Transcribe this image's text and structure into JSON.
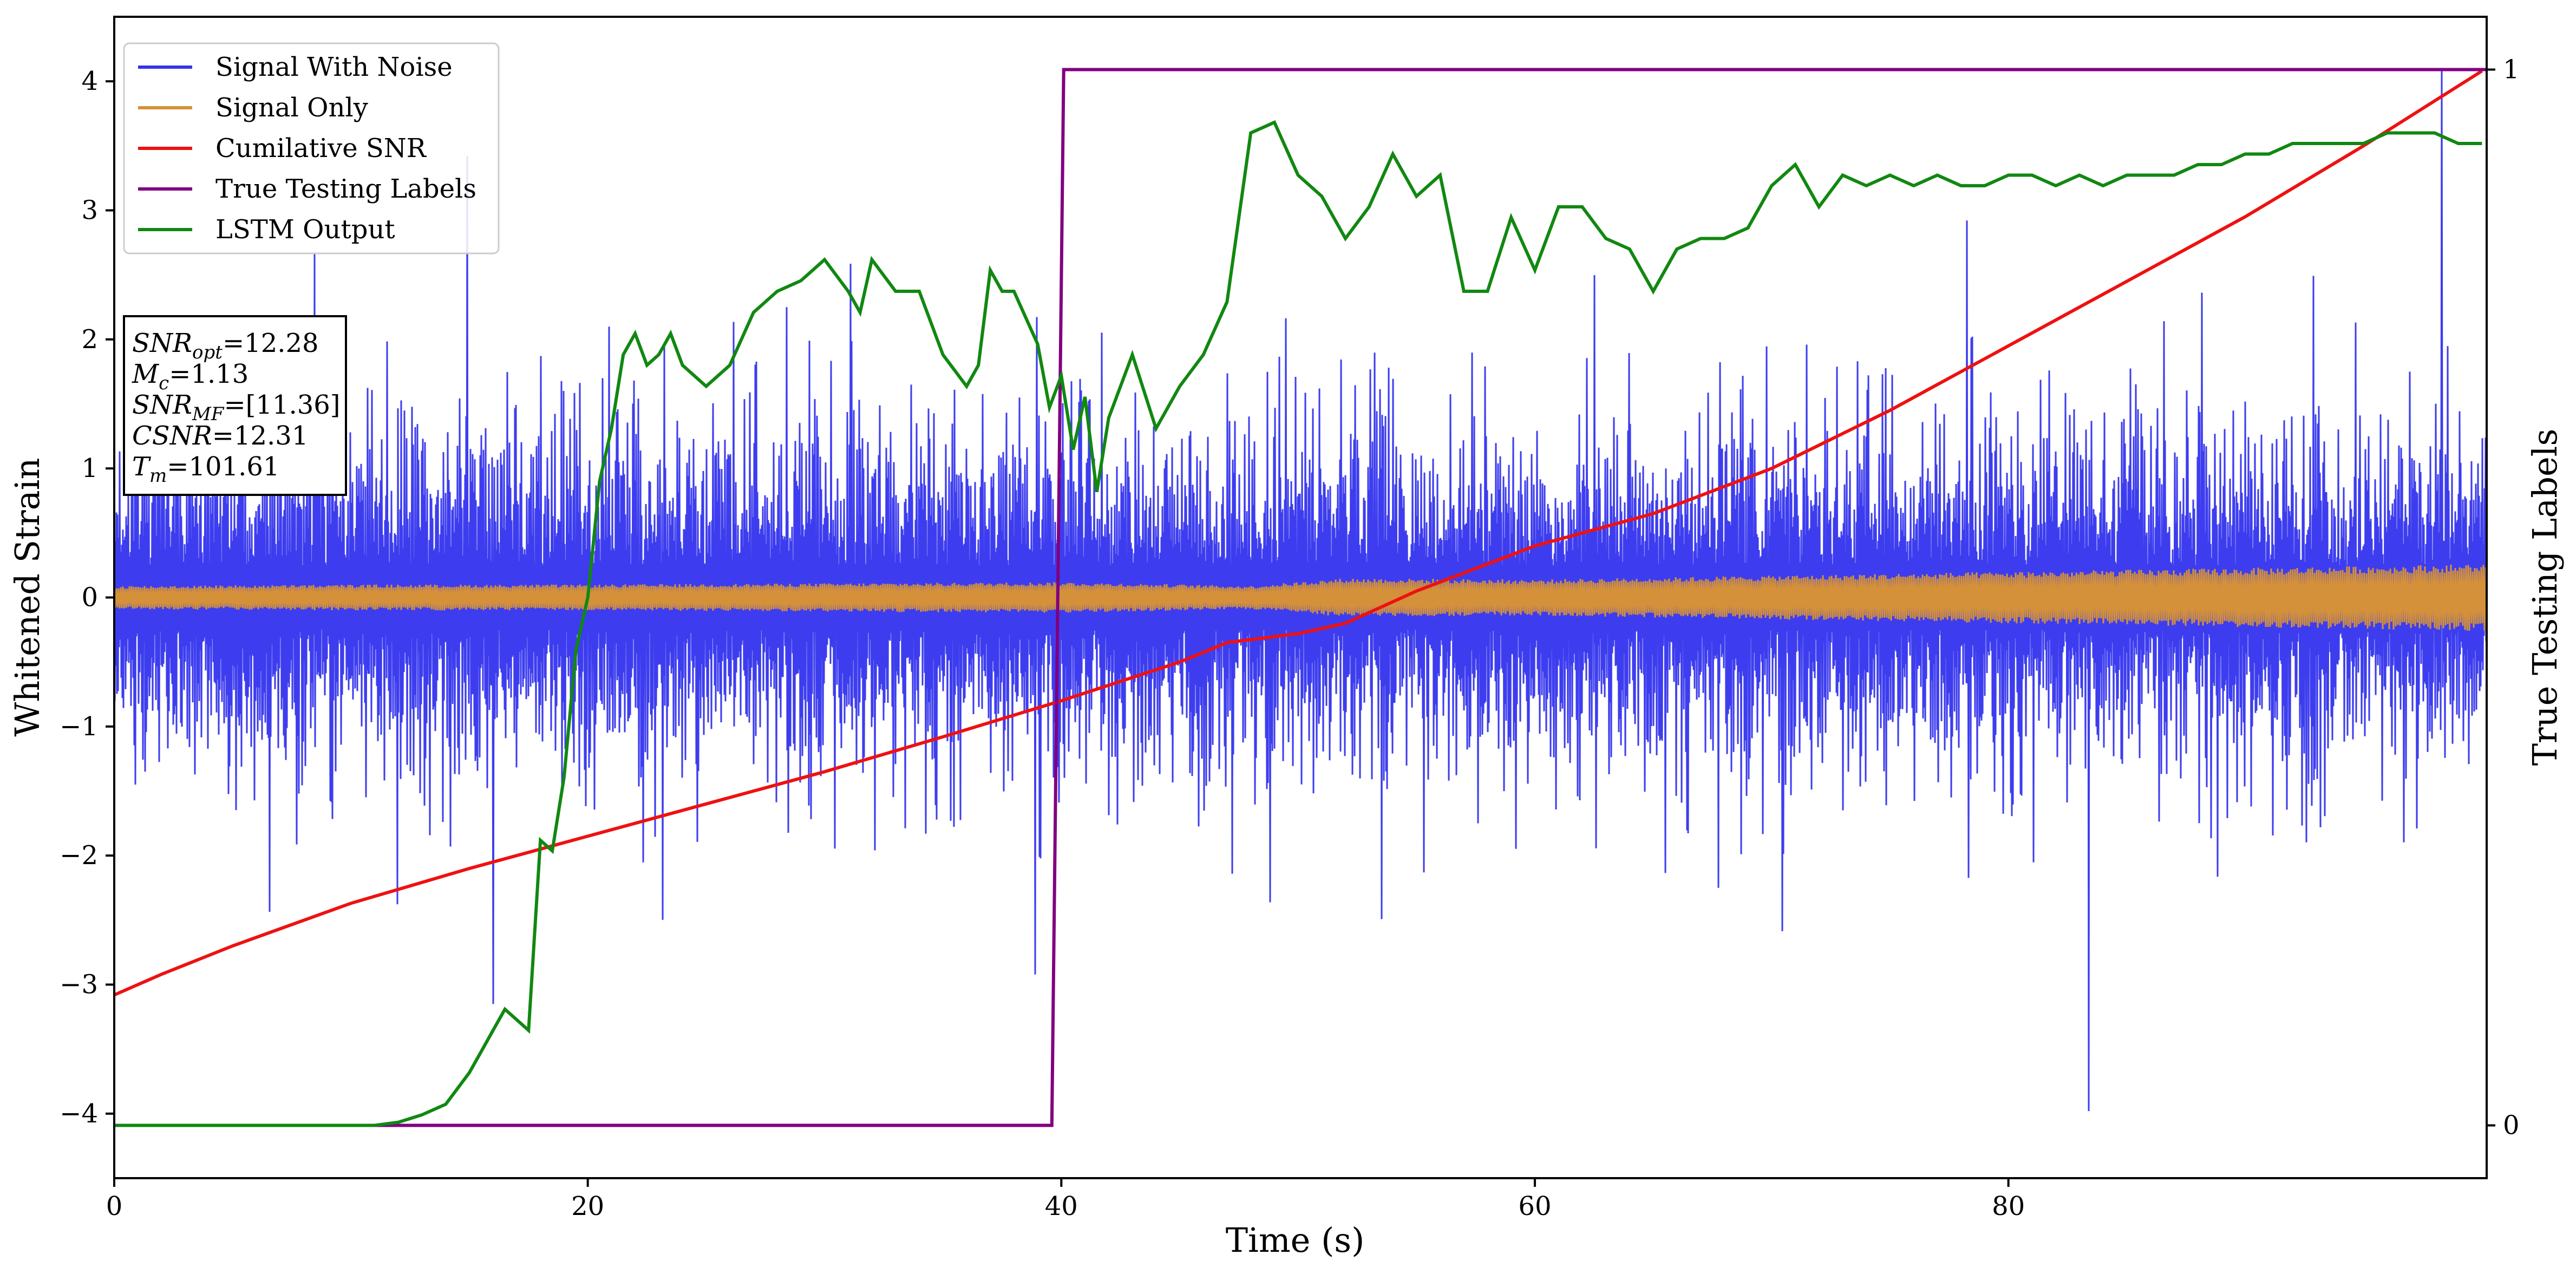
{
  "chart_data": {
    "type": "line",
    "xlabel": "Time (s)",
    "ylabel": "Whitened Strain",
    "y2label": "True Testing Labels",
    "xlim": [
      0,
      100.2
    ],
    "ylim": [
      -4.5,
      4.5
    ],
    "y2lim": [
      -0.05,
      1.05
    ],
    "x_ticks": [
      0,
      20,
      40,
      60,
      80
    ],
    "y_ticks": [
      -4,
      -3,
      -2,
      -1,
      0,
      1,
      2,
      3,
      4
    ],
    "y2_ticks": [
      0,
      1
    ],
    "grid": false,
    "legend_position": "top-left",
    "colors": {
      "signal_with_noise": "#3333ee",
      "signal_only": "#d4913a",
      "cumulative_snr": "#ee1111",
      "true_labels": "#800080",
      "lstm_output": "#118811"
    },
    "legend": [
      {
        "key": "signal_with_noise",
        "label": "Signal With Noise"
      },
      {
        "key": "signal_only",
        "label": "Signal Only"
      },
      {
        "key": "cumulative_snr",
        "label": "Cumilative SNR"
      },
      {
        "key": "true_labels",
        "label": "True Testing Labels"
      },
      {
        "key": "lstm_output",
        "label": "LSTM Output"
      }
    ],
    "info_box": [
      {
        "base": "SNR",
        "sub": "opt",
        "value": "=12.28"
      },
      {
        "base": "M",
        "sub": "c",
        "value": "=1.13"
      },
      {
        "base": "SNR",
        "sub": "MF",
        "value": "=[11.36]"
      },
      {
        "base": "CSNR",
        "sub": "",
        "value": "=12.31"
      },
      {
        "base": "T",
        "sub": "m",
        "value": "=101.61"
      }
    ],
    "signal_with_noise": {
      "note_axis": "left",
      "typical_envelope": 1.3,
      "max_abs": 4.1,
      "extreme_peaks": [
        {
          "x": 16.0,
          "y": -3.15
        },
        {
          "x": 14.9,
          "y": 3.42
        },
        {
          "x": 83.4,
          "y": -3.98
        },
        {
          "x": 98.3,
          "y": 4.1
        }
      ]
    },
    "signal_only": {
      "axis": "left",
      "x": [
        0,
        10,
        20,
        30,
        40,
        48,
        52,
        60,
        70,
        80,
        90,
        100
      ],
      "amplitude": [
        0.09,
        0.1,
        0.1,
        0.11,
        0.12,
        0.09,
        0.15,
        0.14,
        0.17,
        0.2,
        0.23,
        0.26
      ]
    },
    "cumulative_snr": {
      "axis": "left",
      "x": [
        0,
        2,
        5,
        10,
        15,
        20,
        25,
        30,
        35,
        40,
        45,
        47,
        50,
        52,
        55,
        60,
        65,
        70,
        75,
        80,
        85,
        90,
        95,
        100
      ],
      "y": [
        -3.08,
        -2.92,
        -2.7,
        -2.37,
        -2.1,
        -1.85,
        -1.6,
        -1.35,
        -1.08,
        -0.8,
        -0.5,
        -0.35,
        -0.28,
        -0.2,
        0.05,
        0.4,
        0.65,
        1.0,
        1.45,
        1.95,
        2.45,
        2.95,
        3.5,
        4.08
      ]
    },
    "true_testing_labels": {
      "axis": "right",
      "x": [
        0,
        39.6,
        40.1,
        100.2
      ],
      "y": [
        0,
        0,
        1,
        1
      ]
    },
    "lstm_output": {
      "axis": "right",
      "x": [
        0,
        11,
        12,
        13,
        14,
        15,
        15.5,
        16,
        16.5,
        17,
        17.5,
        18,
        18.5,
        19,
        19.5,
        20,
        20.5,
        21,
        21.5,
        22,
        22.5,
        23,
        23.5,
        24,
        25,
        26,
        27,
        28,
        29,
        30,
        31,
        31.5,
        32,
        33,
        34,
        35,
        36,
        36.5,
        37,
        37.5,
        38,
        39,
        39.5,
        40,
        40.5,
        41,
        41.5,
        42,
        43,
        44,
        45,
        46,
        47,
        48,
        49,
        50,
        51,
        52,
        53,
        54,
        55,
        56,
        57,
        58,
        59,
        60,
        61,
        62,
        63,
        64,
        65,
        66,
        67,
        68,
        69,
        70,
        71,
        72,
        73,
        74,
        75,
        76,
        77,
        78,
        79,
        80,
        81,
        82,
        83,
        84,
        85,
        86,
        87,
        88,
        89,
        90,
        91,
        92,
        93,
        94,
        95,
        96,
        97,
        98,
        99,
        100
      ],
      "y": [
        0.0,
        0.0,
        0.003,
        0.01,
        0.02,
        0.05,
        0.07,
        0.09,
        0.11,
        0.1,
        0.09,
        0.27,
        0.26,
        0.33,
        0.45,
        0.5,
        0.61,
        0.66,
        0.73,
        0.75,
        0.72,
        0.73,
        0.75,
        0.72,
        0.7,
        0.72,
        0.77,
        0.79,
        0.8,
        0.82,
        0.79,
        0.77,
        0.82,
        0.79,
        0.79,
        0.73,
        0.7,
        0.72,
        0.81,
        0.79,
        0.79,
        0.74,
        0.68,
        0.71,
        0.64,
        0.69,
        0.6,
        0.67,
        0.73,
        0.66,
        0.7,
        0.73,
        0.78,
        0.94,
        0.95,
        0.9,
        0.88,
        0.84,
        0.87,
        0.92,
        0.88,
        0.9,
        0.79,
        0.79,
        0.86,
        0.81,
        0.87,
        0.87,
        0.84,
        0.83,
        0.79,
        0.83,
        0.84,
        0.84,
        0.85,
        0.89,
        0.91,
        0.87,
        0.9,
        0.89,
        0.9,
        0.89,
        0.9,
        0.89,
        0.89,
        0.9,
        0.9,
        0.89,
        0.9,
        0.89,
        0.9,
        0.9,
        0.9,
        0.91,
        0.91,
        0.92,
        0.92,
        0.93,
        0.93,
        0.93,
        0.93,
        0.94,
        0.94,
        0.94,
        0.93,
        0.93
      ]
    }
  }
}
